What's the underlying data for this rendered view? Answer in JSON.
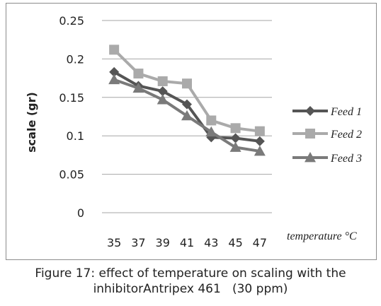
{
  "chart_data": {
    "type": "line",
    "title": "",
    "xlabel": "temperature °C",
    "ylabel": "scale (gr)",
    "x": [
      35,
      37,
      39,
      41,
      43,
      45,
      47
    ],
    "ylim": [
      0,
      0.25
    ],
    "yticks": [
      "0",
      "0.05",
      "0.1",
      "0.15",
      "0.2",
      "0.25"
    ],
    "grid": true,
    "legend_position": "right",
    "series": [
      {
        "name": "Feed 1",
        "values": [
          0.183,
          0.165,
          0.158,
          0.141,
          0.098,
          0.097,
          0.093
        ],
        "color": "#555555",
        "marker": "diamond"
      },
      {
        "name": "Feed 2",
        "values": [
          0.212,
          0.181,
          0.171,
          0.168,
          0.12,
          0.11,
          0.106
        ],
        "color": "#aaaaaa",
        "marker": "square"
      },
      {
        "name": "Feed 3",
        "values": [
          0.173,
          0.162,
          0.147,
          0.126,
          0.105,
          0.085,
          0.08
        ],
        "color": "#7a7a7a",
        "marker": "triangle"
      }
    ]
  },
  "caption": {
    "line1": "Figure 17: effect of temperature on scaling with the",
    "line2": "inhibitorAntripex 461   (30 ppm)"
  }
}
